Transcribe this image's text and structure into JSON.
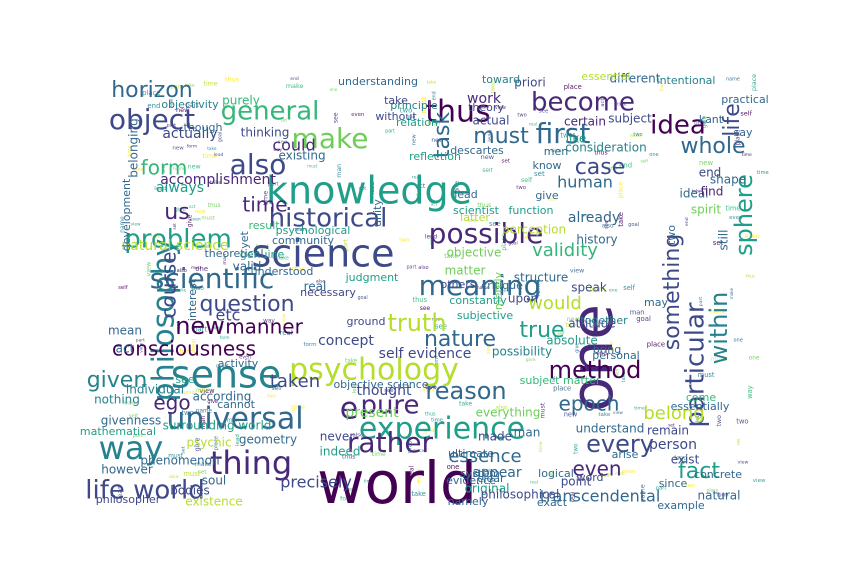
{
  "palette": [
    "#440154",
    "#482878",
    "#3e4989",
    "#31688e",
    "#26828e",
    "#1f9e89",
    "#35b779",
    "#6ece58",
    "#b5de2b",
    "#fde725"
  ],
  "words": [
    {
      "text": "world",
      "c": 0
    },
    {
      "text": "one",
      "c": 1
    },
    {
      "text": "science",
      "c": 2
    },
    {
      "text": "knowledge",
      "c": 5
    },
    {
      "text": "sense",
      "c": 4
    },
    {
      "text": "experience",
      "c": 5
    },
    {
      "text": "psychology",
      "c": 8
    },
    {
      "text": "way",
      "c": 4
    },
    {
      "text": "thing",
      "c": 1
    },
    {
      "text": "universal",
      "c": 3
    },
    {
      "text": "philosophy",
      "c": 4
    },
    {
      "text": "thus",
      "c": 0
    },
    {
      "text": "life world",
      "c": 2
    },
    {
      "text": "object",
      "c": 2
    },
    {
      "text": "also",
      "c": 2
    },
    {
      "text": "scientific",
      "c": 3
    },
    {
      "text": "meaning",
      "c": 3
    },
    {
      "text": "possible",
      "c": 1
    },
    {
      "text": "first",
      "c": 3
    },
    {
      "text": "make",
      "c": 7
    },
    {
      "text": "rather",
      "c": 1
    },
    {
      "text": "particular",
      "c": 2
    },
    {
      "text": "general",
      "c": 6
    },
    {
      "text": "problem",
      "c": 5
    },
    {
      "text": "historical",
      "c": 2
    },
    {
      "text": "within",
      "c": 4
    },
    {
      "text": "sphere",
      "c": 5
    },
    {
      "text": "become",
      "c": 1
    },
    {
      "text": "idea",
      "c": 0
    },
    {
      "text": "pure",
      "c": 1
    },
    {
      "text": "new",
      "c": 0
    },
    {
      "text": "truth",
      "c": 8
    },
    {
      "text": "question",
      "c": 2
    },
    {
      "text": "every",
      "c": 2
    },
    {
      "text": "reason",
      "c": 3
    },
    {
      "text": "method",
      "c": 0
    },
    {
      "text": "horizon",
      "c": 3
    },
    {
      "text": "something",
      "c": 2
    },
    {
      "text": "life",
      "c": 2
    },
    {
      "text": "task",
      "c": 3
    },
    {
      "text": "whole",
      "c": 3
    },
    {
      "text": "must",
      "c": 3
    },
    {
      "text": "case",
      "c": 2
    },
    {
      "text": "fact",
      "c": 5
    },
    {
      "text": "true",
      "c": 5
    },
    {
      "text": "nature",
      "c": 3
    },
    {
      "text": "given",
      "c": 4
    },
    {
      "text": "manner",
      "c": 0
    },
    {
      "text": "consciousness",
      "c": 0
    },
    {
      "text": "e",
      "c": 1
    },
    {
      "text": "us",
      "c": 1
    },
    {
      "text": "form",
      "c": 6
    },
    {
      "text": "time",
      "c": 1
    },
    {
      "text": "course",
      "c": 2
    },
    {
      "text": "ego",
      "c": 1
    },
    {
      "text": "epoch",
      "c": 3
    },
    {
      "text": "even",
      "c": 1
    },
    {
      "text": "essence",
      "c": 3
    },
    {
      "text": "would",
      "c": 8
    },
    {
      "text": "validity",
      "c": 6
    },
    {
      "text": "taken",
      "c": 2
    },
    {
      "text": "belong",
      "c": 8
    },
    {
      "text": "could",
      "c": 1
    },
    {
      "text": "human",
      "c": 3
    },
    {
      "text": "transcendental",
      "c": 3
    },
    {
      "text": "precisely",
      "c": 2
    },
    {
      "text": "etc",
      "c": 2
    },
    {
      "text": "concept",
      "c": 2
    },
    {
      "text": "always",
      "c": 5
    },
    {
      "text": "accomplishment",
      "c": 1
    },
    {
      "text": "self evidence",
      "c": 2
    },
    {
      "text": "actually",
      "c": 2
    },
    {
      "text": "already",
      "c": 3
    },
    {
      "text": "appear",
      "c": 3
    },
    {
      "text": "natural science",
      "c": 8
    },
    {
      "text": "thought",
      "c": 2
    },
    {
      "text": "person",
      "c": 2
    },
    {
      "text": "present",
      "c": 7
    },
    {
      "text": "work",
      "c": 1
    },
    {
      "text": "priori",
      "c": 2
    },
    {
      "text": "subject",
      "c": 2
    },
    {
      "text": "certain",
      "c": 1
    },
    {
      "text": "different",
      "c": 3
    },
    {
      "text": "thinking",
      "c": 2
    },
    {
      "text": "ideal",
      "c": 3
    },
    {
      "text": "spirit",
      "c": 7
    },
    {
      "text": "shape",
      "c": 3
    },
    {
      "text": "still",
      "c": 3
    },
    {
      "text": "end",
      "c": 2
    },
    {
      "text": "find",
      "c": 1
    },
    {
      "text": "act",
      "c": 3
    },
    {
      "text": "mean",
      "c": 3
    },
    {
      "text": "individual",
      "c": 4
    },
    {
      "text": "according",
      "c": 3
    },
    {
      "text": "nothing",
      "c": 4
    },
    {
      "text": "givenness",
      "c": 3
    },
    {
      "text": "surrounding world",
      "c": 5
    },
    {
      "text": "geometry",
      "c": 3
    },
    {
      "text": "psychic",
      "c": 8
    },
    {
      "text": "phenomenon",
      "c": 3
    },
    {
      "text": "mathematical",
      "c": 5
    },
    {
      "text": "soul",
      "c": 3
    },
    {
      "text": "however",
      "c": 3
    },
    {
      "text": "bodies",
      "c": 2
    },
    {
      "text": "philosopher",
      "c": 2
    },
    {
      "text": "existence",
      "c": 8
    },
    {
      "text": "indeed",
      "c": 5
    },
    {
      "text": "never",
      "c": 2
    },
    {
      "text": "made",
      "c": 2
    },
    {
      "text": "man",
      "c": 3
    },
    {
      "text": "original",
      "c": 5
    },
    {
      "text": "philosophical",
      "c": 2
    },
    {
      "text": "point",
      "c": 2
    },
    {
      "text": "remain",
      "c": 2
    },
    {
      "text": "exist",
      "c": 2
    },
    {
      "text": "natural",
      "c": 3
    },
    {
      "text": "concrete",
      "c": 3
    },
    {
      "text": "purely",
      "c": 6
    },
    {
      "text": "real",
      "c": 3
    },
    {
      "text": "valid",
      "c": 3
    },
    {
      "text": "objective",
      "c": 7
    },
    {
      "text": "perception",
      "c": 8
    },
    {
      "text": "history",
      "c": 3
    },
    {
      "text": "possibility",
      "c": 4
    },
    {
      "text": "matter",
      "c": 7
    },
    {
      "text": "structure",
      "c": 3
    },
    {
      "text": "speak",
      "c": 2
    },
    {
      "text": "upon",
      "c": 2
    },
    {
      "text": "attitude",
      "c": 2
    },
    {
      "text": "together",
      "c": 4
    },
    {
      "text": "absolute",
      "c": 5
    },
    {
      "text": "everything",
      "c": 7
    },
    {
      "text": "understand",
      "c": 3
    },
    {
      "text": "others",
      "c": 2
    },
    {
      "text": "interest",
      "c": 3
    },
    {
      "text": "activity",
      "c": 3
    },
    {
      "text": "cannot",
      "c": 3
    },
    {
      "text": "yet",
      "c": 3
    },
    {
      "text": "unity",
      "c": 3
    },
    {
      "text": "existing",
      "c": 3
    },
    {
      "text": "genuine",
      "c": 5
    },
    {
      "text": "theoretical",
      "c": 3
    },
    {
      "text": "subjective",
      "c": 5
    },
    {
      "text": "objectivity",
      "c": 4
    },
    {
      "text": "actual",
      "c": 2
    },
    {
      "text": "relation",
      "c": 5
    },
    {
      "text": "theory",
      "c": 2
    },
    {
      "text": "principle",
      "c": 4
    },
    {
      "text": "take",
      "c": 2
    },
    {
      "text": "without",
      "c": 2
    },
    {
      "text": "like",
      "c": 5
    },
    {
      "text": "consideration",
      "c": 4
    },
    {
      "text": "essential",
      "c": 8
    },
    {
      "text": "reflection",
      "c": 5
    },
    {
      "text": "descartes",
      "c": 3
    },
    {
      "text": "know",
      "c": 3
    },
    {
      "text": "men",
      "c": 3
    },
    {
      "text": "belonging",
      "c": 3
    },
    {
      "text": "development",
      "c": 3
    },
    {
      "text": "though",
      "c": 3
    },
    {
      "text": "understanding",
      "c": 3
    },
    {
      "text": "intentional",
      "c": 4
    },
    {
      "text": "toward",
      "c": 4
    },
    {
      "text": "result",
      "c": 6
    },
    {
      "text": "community",
      "c": 3
    },
    {
      "text": "psychological",
      "c": 5
    },
    {
      "text": "judgment",
      "c": 5
    },
    {
      "text": "necessary",
      "c": 2
    },
    {
      "text": "understood",
      "c": 3
    },
    {
      "text": "critique",
      "c": 3
    },
    {
      "text": "merely",
      "c": 7
    },
    {
      "text": "constantly",
      "c": 5
    },
    {
      "text": "latter",
      "c": 8
    },
    {
      "text": "personal",
      "c": 3
    },
    {
      "text": "subject matter",
      "c": 6
    },
    {
      "text": "objective science",
      "c": 3
    },
    {
      "text": "ultimate",
      "c": 3
    },
    {
      "text": "system",
      "c": 3
    },
    {
      "text": "clear",
      "c": 3
    },
    {
      "text": "evidence",
      "c": 3
    },
    {
      "text": "namely",
      "c": 3
    },
    {
      "text": "logical",
      "c": 3
    },
    {
      "text": "exact",
      "c": 3
    },
    {
      "text": "example",
      "c": 3
    },
    {
      "text": "come",
      "c": 6
    },
    {
      "text": "essentially",
      "c": 3
    },
    {
      "text": "arise",
      "c": 3
    },
    {
      "text": "since",
      "c": 3
    },
    {
      "text": "kant",
      "c": 3
    },
    {
      "text": "practical",
      "c": 3
    },
    {
      "text": "ground",
      "c": 2
    },
    {
      "text": "lead",
      "c": 3
    },
    {
      "text": "give",
      "c": 3
    },
    {
      "text": "scientist",
      "c": 5
    },
    {
      "text": "function",
      "c": 5
    },
    {
      "text": "see",
      "c": 5
    },
    {
      "text": "bring",
      "c": 3
    },
    {
      "text": "may",
      "c": 3
    },
    {
      "text": "two",
      "c": 3
    },
    {
      "text": "word",
      "c": 2
    },
    {
      "text": "say",
      "c": 3
    }
  ]
}
